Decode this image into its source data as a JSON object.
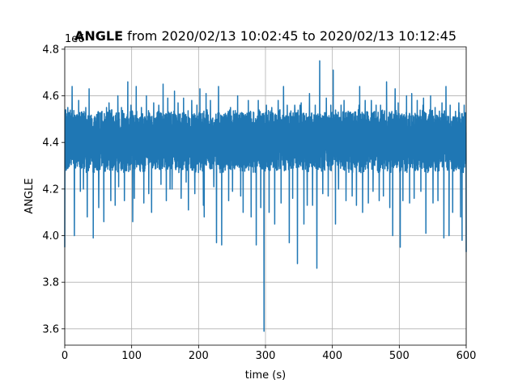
{
  "chart_data": {
    "type": "line",
    "title_bold": "ANGLE",
    "title_rest": " from 2020/02/13 10:02:45 to 2020/02/13 10:12:45",
    "xlabel": "time (s)",
    "ylabel": "ANGLE",
    "offset_label": "1e6",
    "xlim": [
      0,
      600
    ],
    "ylim": [
      3.53,
      4.81
    ],
    "xticks": [
      0,
      100,
      200,
      300,
      400,
      500,
      600
    ],
    "xtick_labels": [
      "0",
      "100",
      "200",
      "300",
      "400",
      "500",
      "600"
    ],
    "yticks": [
      3.6,
      3.8,
      4.0,
      4.2,
      4.4,
      4.6,
      4.8
    ],
    "ytick_labels": [
      "3.6",
      "3.8",
      "4.0",
      "4.2",
      "4.4",
      "4.6",
      "4.8"
    ],
    "grid": true,
    "line_color": "#1f77b4",
    "series": [
      {
        "x": [
          0,
          8,
          16,
          24,
          32,
          40,
          48,
          56,
          64,
          72,
          80,
          88,
          96,
          104,
          112,
          120,
          128,
          136,
          144,
          152,
          160,
          168,
          176,
          184,
          192,
          200,
          208,
          216,
          224,
          232,
          240,
          248,
          256,
          264,
          272,
          280,
          288,
          296,
          304,
          312,
          320,
          328,
          336,
          344,
          352,
          360,
          368,
          376,
          384,
          392,
          400,
          408,
          416,
          424,
          432,
          440,
          448,
          456,
          464,
          472,
          480,
          488,
          496,
          504,
          512,
          520,
          528,
          536,
          544,
          552,
          560,
          568,
          576,
          584,
          592,
          600
        ],
        "mean": [
          4.41,
          4.42,
          4.4,
          4.41,
          4.4,
          4.4,
          4.41,
          4.4,
          4.41,
          4.4,
          4.41,
          4.4,
          4.41,
          4.41,
          4.4,
          4.41,
          4.4,
          4.41,
          4.4,
          4.41,
          4.41,
          4.4,
          4.4,
          4.41,
          4.4,
          4.4,
          4.41,
          4.4,
          4.41,
          4.4,
          4.41,
          4.41,
          4.4,
          4.4,
          4.41,
          4.4,
          4.41,
          4.4,
          4.41,
          4.4,
          4.41,
          4.4,
          4.41,
          4.41,
          4.4,
          4.4,
          4.41,
          4.4,
          4.41,
          4.4,
          4.41,
          4.4,
          4.41,
          4.4,
          4.41,
          4.4,
          4.41,
          4.41,
          4.4,
          4.41,
          4.4,
          4.41,
          4.4,
          4.4,
          4.41,
          4.4,
          4.41,
          4.4,
          4.41,
          4.4,
          4.41,
          4.41,
          4.4,
          4.41,
          4.4,
          4.41
        ],
        "max": [
          4.55,
          4.64,
          4.58,
          4.55,
          4.63,
          4.52,
          4.53,
          4.55,
          4.57,
          4.6,
          4.55,
          4.66,
          4.56,
          4.64,
          4.55,
          4.6,
          4.57,
          4.56,
          4.65,
          4.59,
          4.62,
          4.57,
          4.59,
          4.58,
          4.56,
          4.63,
          4.61,
          4.58,
          4.64,
          4.52,
          4.55,
          4.52,
          4.6,
          4.52,
          4.58,
          4.53,
          4.58,
          4.56,
          4.55,
          4.58,
          4.64,
          4.56,
          4.56,
          4.56,
          4.57,
          4.61,
          4.56,
          4.75,
          4.59,
          4.56,
          4.71,
          4.56,
          4.58,
          4.53,
          4.56,
          4.64,
          4.58,
          4.58,
          4.56,
          4.56,
          4.66,
          4.63,
          4.57,
          4.6,
          4.61,
          4.58,
          4.56,
          4.59,
          4.6,
          4.55,
          4.57,
          4.64,
          4.56,
          4.57,
          4.56,
          4.57
        ],
        "min": [
          3.95,
          4.0,
          4.19,
          4.2,
          4.08,
          3.99,
          4.12,
          4.06,
          4.15,
          4.13,
          4.21,
          4.15,
          4.06,
          4.16,
          4.14,
          4.18,
          4.1,
          4.22,
          4.15,
          4.2,
          4.2,
          4.16,
          4.23,
          4.11,
          4.18,
          4.13,
          4.08,
          4.21,
          3.97,
          3.96,
          4.15,
          4.19,
          4.17,
          4.1,
          4.08,
          3.96,
          4.12,
          3.59,
          4.1,
          4.05,
          4.14,
          3.97,
          4.16,
          3.88,
          4.05,
          4.13,
          4.13,
          3.86,
          4.18,
          4.17,
          4.05,
          4.2,
          4.15,
          4.17,
          4.13,
          4.1,
          4.14,
          4.19,
          4.15,
          4.17,
          4.12,
          4.0,
          3.95,
          4.15,
          4.14,
          4.16,
          4.19,
          4.01,
          4.14,
          4.15,
          3.99,
          4.0,
          4.1,
          4.08,
          3.98,
          3.93
        ]
      }
    ]
  }
}
